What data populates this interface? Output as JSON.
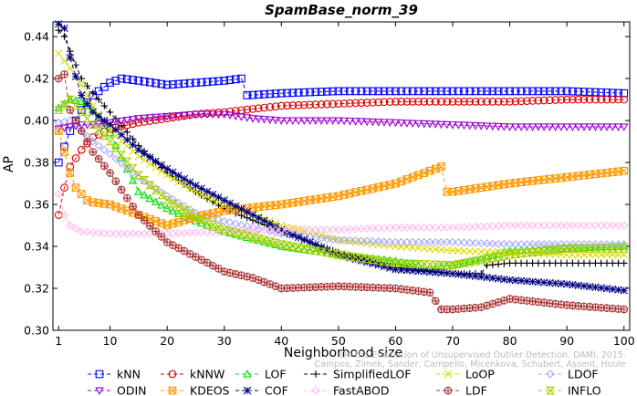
{
  "chart_data": {
    "type": "line",
    "title": "SpamBase_norm_39",
    "xlabel": "Neighborhood size",
    "ylabel": "AP",
    "xlim": [
      0,
      101
    ],
    "ylim": [
      0.3,
      0.447
    ],
    "x_ticks": [
      1,
      10,
      20,
      30,
      40,
      50,
      60,
      70,
      80,
      90,
      100
    ],
    "y_ticks": [
      0.3,
      0.32,
      0.34,
      0.36,
      0.38,
      0.4,
      0.42,
      0.44
    ],
    "grid": false,
    "legend_position": "bottom",
    "credit": "Campos, Zimek, Sander, Campello, Micenkova, Schubert, Assent, Houle",
    "credit_header": "On the Evaluation of Unsupervised Outlier Detection. DAMI, 2015.",
    "series": [
      {
        "name": "kNN",
        "color": "#0000ff",
        "marker": "square",
        "x": [
          1,
          3,
          5,
          7,
          10,
          12,
          15,
          20,
          25,
          30,
          33,
          34,
          40,
          50,
          60,
          70,
          80,
          90,
          100
        ],
        "y": [
          0.38,
          0.395,
          0.405,
          0.412,
          0.418,
          0.42,
          0.419,
          0.417,
          0.418,
          0.419,
          0.42,
          0.412,
          0.413,
          0.414,
          0.414,
          0.414,
          0.414,
          0.414,
          0.413
        ]
      },
      {
        "name": "kNNW",
        "color": "#dd0000",
        "marker": "circle",
        "x": [
          1,
          2,
          3,
          5,
          7,
          10,
          15,
          20,
          25,
          30,
          40,
          50,
          60,
          70,
          80,
          90,
          100
        ],
        "y": [
          0.355,
          0.368,
          0.378,
          0.386,
          0.392,
          0.396,
          0.399,
          0.401,
          0.403,
          0.404,
          0.407,
          0.408,
          0.409,
          0.409,
          0.409,
          0.41,
          0.41
        ]
      },
      {
        "name": "LOF",
        "color": "#00dd00",
        "marker": "triangle",
        "x": [
          1,
          3,
          5,
          7,
          10,
          12,
          15,
          20,
          25,
          30,
          40,
          50,
          60,
          66,
          70,
          75,
          80,
          90,
          100
        ],
        "y": [
          0.406,
          0.41,
          0.409,
          0.405,
          0.394,
          0.382,
          0.366,
          0.358,
          0.352,
          0.347,
          0.34,
          0.336,
          0.333,
          0.33,
          0.331,
          0.334,
          0.338,
          0.339,
          0.34
        ]
      },
      {
        "name": "SimplifiedLOF",
        "color": "#000000",
        "marker": "plus",
        "x": [
          1,
          2,
          3,
          5,
          7,
          10,
          15,
          20,
          25,
          30,
          40,
          50,
          60,
          70,
          75,
          76,
          80,
          90,
          100
        ],
        "y": [
          0.443,
          0.44,
          0.433,
          0.42,
          0.413,
          0.404,
          0.388,
          0.375,
          0.366,
          0.358,
          0.347,
          0.337,
          0.33,
          0.327,
          0.327,
          0.331,
          0.332,
          0.332,
          0.332
        ]
      },
      {
        "name": "LoOP",
        "color": "#dddd00",
        "marker": "x",
        "x": [
          1,
          3,
          5,
          7,
          10,
          15,
          20,
          25,
          30,
          40,
          50,
          60,
          70,
          80,
          90,
          100
        ],
        "y": [
          0.432,
          0.425,
          0.417,
          0.407,
          0.395,
          0.383,
          0.374,
          0.366,
          0.36,
          0.35,
          0.343,
          0.34,
          0.338,
          0.337,
          0.336,
          0.336
        ]
      },
      {
        "name": "LDOF",
        "color": "#aaaaff",
        "marker": "diamond",
        "x": [
          1,
          3,
          5,
          7,
          10,
          15,
          20,
          25,
          30,
          40,
          50,
          60,
          70,
          80,
          90,
          100
        ],
        "y": [
          0.399,
          0.4,
          0.395,
          0.39,
          0.384,
          0.373,
          0.364,
          0.356,
          0.352,
          0.346,
          0.343,
          0.342,
          0.342,
          0.341,
          0.341,
          0.341
        ]
      },
      {
        "name": "ODIN",
        "color": "#9900cc",
        "marker": "triangle-down",
        "x": [
          1,
          3,
          5,
          7,
          10,
          15,
          20,
          25,
          30,
          35,
          40,
          50,
          60,
          70,
          80,
          90,
          100
        ],
        "y": [
          0.396,
          0.397,
          0.398,
          0.398,
          0.399,
          0.401,
          0.402,
          0.403,
          0.403,
          0.401,
          0.4,
          0.4,
          0.399,
          0.398,
          0.397,
          0.397,
          0.397
        ]
      },
      {
        "name": "KDEOS",
        "color": "#ff9900",
        "marker": "square-x",
        "x": [
          1,
          2,
          3,
          4,
          5,
          6,
          7,
          10,
          15,
          20,
          25,
          30,
          40,
          50,
          60,
          68,
          69,
          70,
          80,
          90,
          100
        ],
        "y": [
          0.395,
          0.385,
          0.375,
          0.368,
          0.365,
          0.362,
          0.361,
          0.36,
          0.355,
          0.35,
          0.354,
          0.357,
          0.36,
          0.364,
          0.37,
          0.378,
          0.366,
          0.366,
          0.37,
          0.373,
          0.376
        ]
      },
      {
        "name": "COF",
        "color": "#000080",
        "marker": "asterisk",
        "x": [
          1,
          2,
          3,
          5,
          7,
          10,
          15,
          20,
          25,
          30,
          40,
          50,
          60,
          70,
          80,
          90,
          100
        ],
        "y": [
          0.446,
          0.444,
          0.43,
          0.412,
          0.404,
          0.398,
          0.386,
          0.377,
          0.369,
          0.362,
          0.348,
          0.336,
          0.329,
          0.327,
          0.324,
          0.322,
          0.319
        ]
      },
      {
        "name": "FastABOD",
        "color": "#ffbbee",
        "marker": "diamond",
        "x": [
          1,
          2,
          3,
          5,
          10,
          20,
          30,
          40,
          50,
          60,
          70,
          80,
          90,
          100
        ],
        "y": [
          0.365,
          0.355,
          0.35,
          0.347,
          0.346,
          0.346,
          0.347,
          0.348,
          0.348,
          0.349,
          0.349,
          0.35,
          0.35,
          0.35
        ]
      },
      {
        "name": "LDF",
        "color": "#aa3333",
        "marker": "circle-plus",
        "x": [
          1,
          2,
          3,
          5,
          7,
          10,
          15,
          20,
          25,
          30,
          35,
          40,
          50,
          60,
          66,
          68,
          70,
          75,
          80,
          90,
          100
        ],
        "y": [
          0.42,
          0.422,
          0.405,
          0.395,
          0.385,
          0.375,
          0.355,
          0.342,
          0.335,
          0.328,
          0.325,
          0.32,
          0.321,
          0.32,
          0.318,
          0.31,
          0.31,
          0.311,
          0.315,
          0.312,
          0.31
        ]
      },
      {
        "name": "INFLO",
        "color": "#aacc00",
        "marker": "hourglass",
        "x": [
          1,
          3,
          5,
          7,
          10,
          15,
          20,
          25,
          30,
          40,
          50,
          60,
          70,
          80,
          90,
          100
        ],
        "y": [
          0.405,
          0.41,
          0.404,
          0.398,
          0.39,
          0.374,
          0.362,
          0.354,
          0.348,
          0.341,
          0.336,
          0.332,
          0.331,
          0.336,
          0.339,
          0.339
        ]
      }
    ]
  }
}
